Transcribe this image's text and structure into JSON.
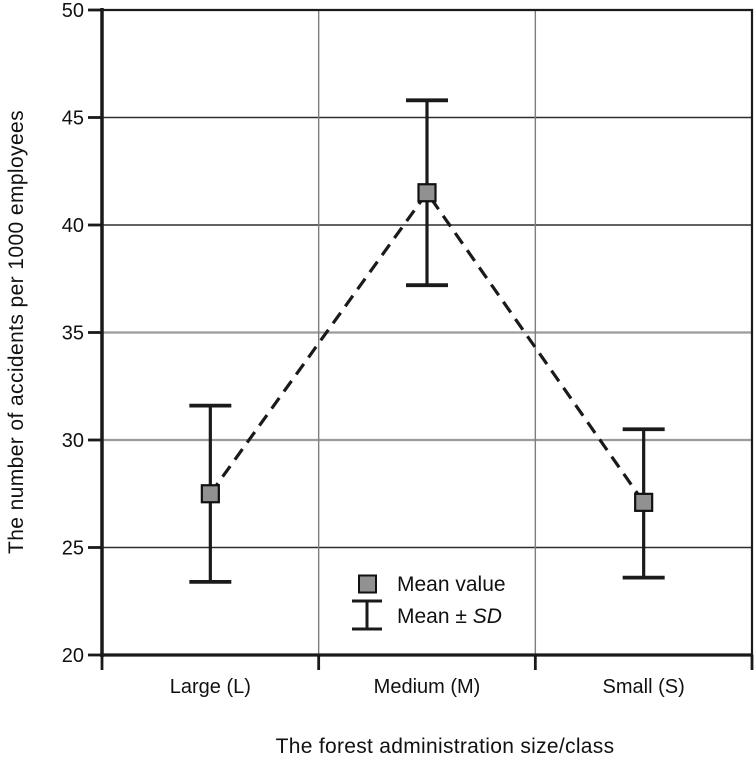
{
  "chart_data": {
    "type": "scatter",
    "title": "",
    "xlabel": "The forest administration size/class",
    "ylabel": "The number of accidents per 1000 employees",
    "categories": [
      "Large (L)",
      "Medium (M)",
      "Small (S)"
    ],
    "points": [
      {
        "category": "Large (L)",
        "mean": 27.5,
        "sd_upper": 31.6,
        "sd_lower": 23.4
      },
      {
        "category": "Medium (M)",
        "mean": 41.5,
        "sd_upper": 45.8,
        "sd_lower": 37.2
      },
      {
        "category": "Small (S)",
        "mean": 27.1,
        "sd_upper": 30.5,
        "sd_lower": 23.6
      }
    ],
    "series": [
      {
        "name": "Mean value",
        "values": [
          27.5,
          41.5,
          27.1
        ]
      },
      {
        "name": "Mean plus SD",
        "values": [
          31.6,
          45.8,
          30.5
        ]
      },
      {
        "name": "Mean minus SD",
        "values": [
          23.4,
          37.2,
          23.6
        ]
      }
    ],
    "ylim": [
      20,
      50
    ],
    "ytick_step": 5,
    "ytick_labels": [
      "20",
      "25",
      "30",
      "35",
      "40",
      "45",
      "50"
    ],
    "grid": true,
    "light_gridlines": [
      30,
      35
    ],
    "line_style": "dashed",
    "marker": "square",
    "legend_position": "inside-bottom-center"
  },
  "legend": {
    "mean_label": "Mean value",
    "sd_label_prefix": "Mean ± ",
    "sd_label_italic": "SD"
  },
  "colors": {
    "text": "#111111",
    "axis": "#1a1a1a",
    "grid_dark": "#2e2e2e",
    "grid_light": "#9b9b9b",
    "grid_vertical": "#7e7e7e",
    "line": "#1a1a1a",
    "marker_fill": "#919191",
    "marker_border": "#111111",
    "background": "#ffffff"
  }
}
